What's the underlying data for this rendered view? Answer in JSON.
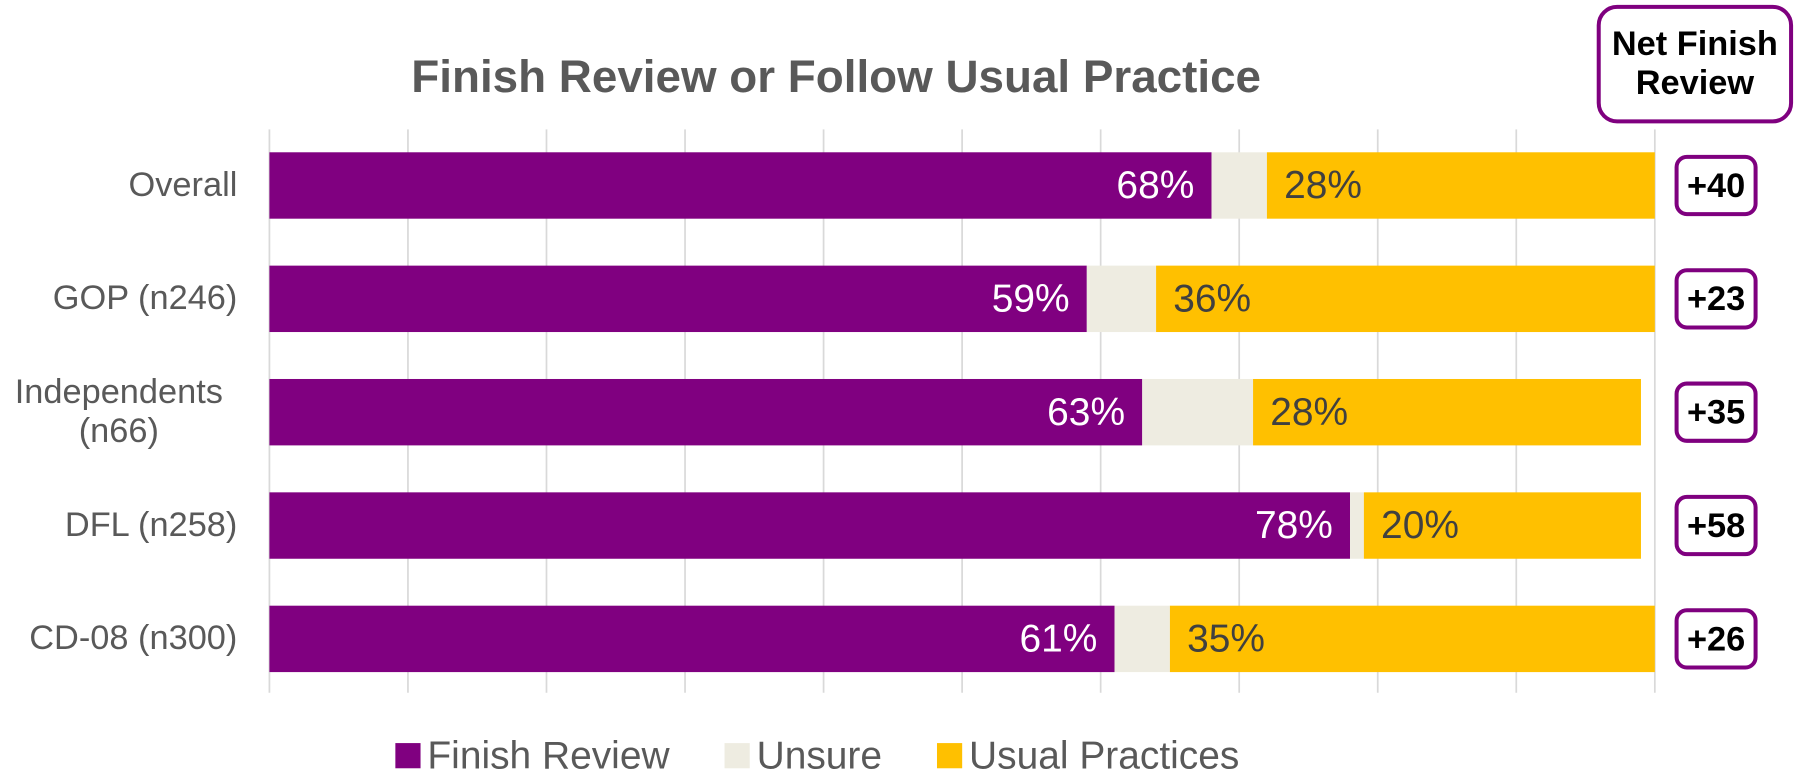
{
  "chart_data": {
    "type": "stacked-bar-horizontal",
    "title": "Finish Review or Follow Usual Practice",
    "categories": [
      "Overall",
      "GOP (n246)",
      "Independents (n66)",
      "DFL (n258)",
      "CD-08 (n300)"
    ],
    "series": [
      {
        "name": "Finish Review",
        "color": "#800080",
        "values": [
          68,
          59,
          63,
          78,
          61
        ],
        "value_labels": [
          "68%",
          "59%",
          "63%",
          "78%",
          "61%"
        ]
      },
      {
        "name": "Unsure",
        "color": "#eeece1",
        "values": [
          4,
          5,
          8,
          1,
          4
        ]
      },
      {
        "name": "Usual Practices",
        "color": "#ffc000",
        "values": [
          28,
          36,
          28,
          20,
          35
        ],
        "value_labels": [
          "28%",
          "36%",
          "28%",
          "20%",
          "35%"
        ]
      }
    ],
    "xlim": [
      0,
      100
    ],
    "xticks": [
      0,
      10,
      20,
      30,
      40,
      50,
      60,
      70,
      80,
      90,
      100
    ],
    "grid": true,
    "legend": "bottom",
    "net": {
      "title": "Net Finish Review",
      "values": [
        40,
        23,
        35,
        58,
        26
      ],
      "value_labels": [
        "+40",
        "+23",
        "+35",
        "+58",
        "+26"
      ],
      "color": "#7f007f"
    }
  }
}
